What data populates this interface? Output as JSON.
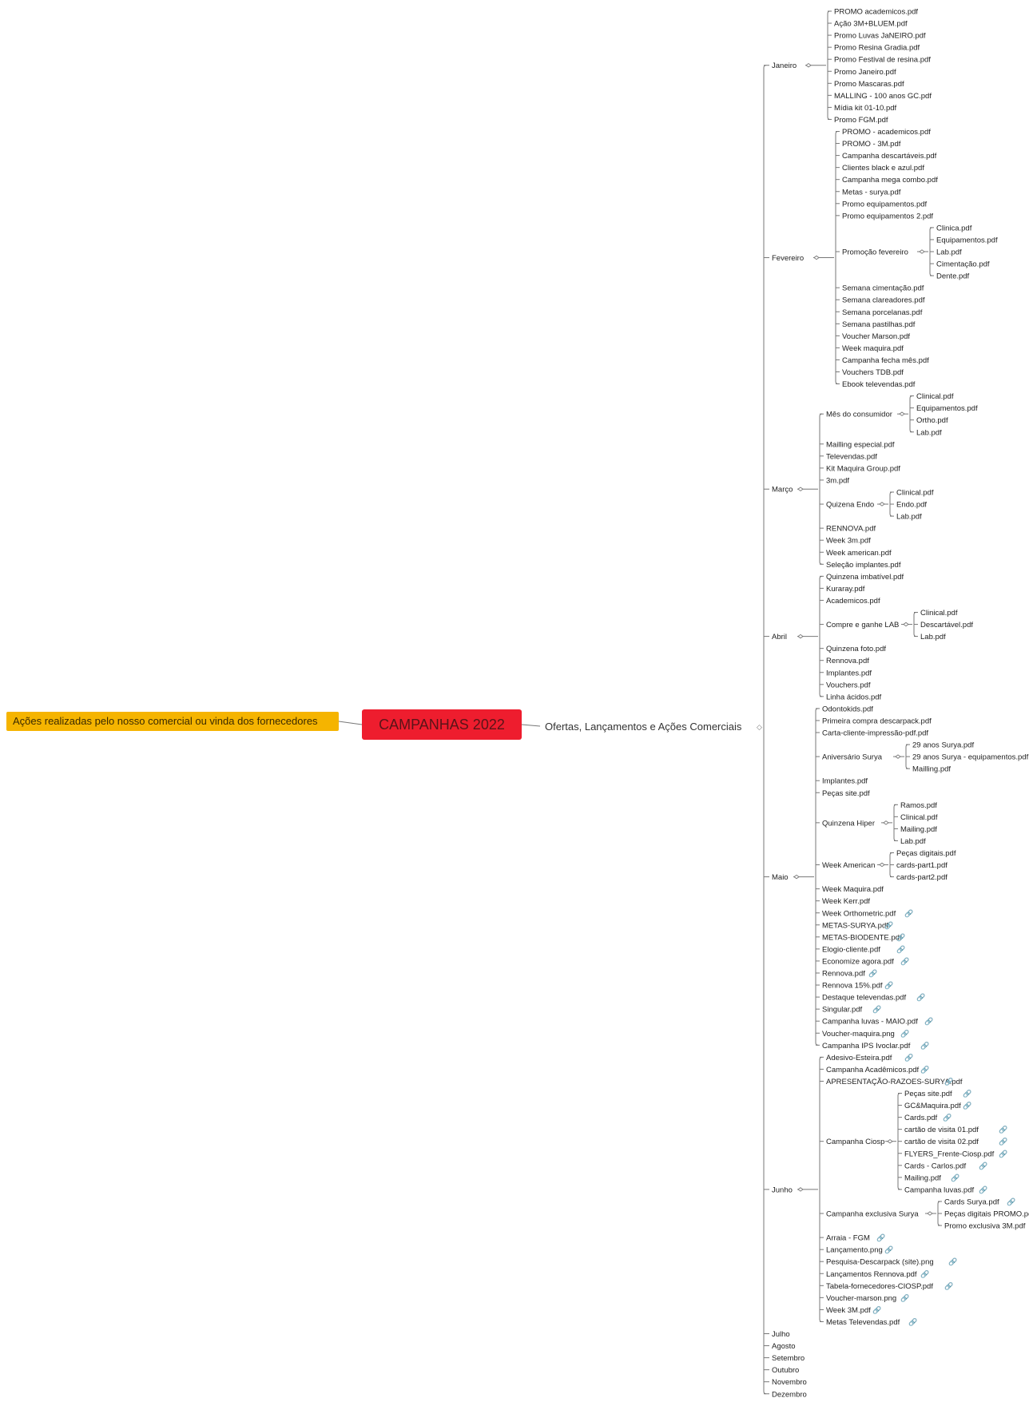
{
  "callout": {
    "text": "Ações realizadas pelo nosso comercial ou vinda dos fornecedores"
  },
  "central": {
    "title": "CAMPANHAS 2022"
  },
  "branch": {
    "label": "Ofertas, Lançamentos e Ações Comerciais"
  },
  "colors": {
    "callout": "#f5b400",
    "central": "#ee1d2e",
    "link_icon": "#4a8ad4"
  },
  "months": [
    {
      "label": "Janeiro",
      "children": [
        {
          "label": "PROMO academicos.pdf"
        },
        {
          "label": "Ação 3M+BLUEM.pdf"
        },
        {
          "label": "Promo Luvas JaNEIRO.pdf"
        },
        {
          "label": "Promo Resina Gradia.pdf"
        },
        {
          "label": "Promo Festival de resina.pdf"
        },
        {
          "label": "Promo Janeiro.pdf"
        },
        {
          "label": "Promo Mascaras.pdf"
        },
        {
          "label": "MALLING - 100 anos GC.pdf"
        },
        {
          "label": "Mídia kit 01-10.pdf"
        },
        {
          "label": "Promo FGM.pdf"
        }
      ]
    },
    {
      "label": "Fevereiro",
      "children": [
        {
          "label": "PROMO - academicos.pdf"
        },
        {
          "label": "PROMO - 3M.pdf"
        },
        {
          "label": "Campanha descartáveis.pdf"
        },
        {
          "label": "Clientes black e azul.pdf"
        },
        {
          "label": "Campanha mega combo.pdf"
        },
        {
          "label": "Metas - surya.pdf"
        },
        {
          "label": "Promo equipamentos.pdf"
        },
        {
          "label": "Promo equipamentos 2.pdf"
        },
        {
          "label": "Promoção fevereiro",
          "children": [
            {
              "label": "Clinica.pdf"
            },
            {
              "label": "Equipamentos.pdf"
            },
            {
              "label": "Lab.pdf"
            },
            {
              "label": "Cimentação.pdf"
            },
            {
              "label": "Dente.pdf"
            }
          ]
        },
        {
          "label": "Semana cimentação.pdf"
        },
        {
          "label": "Semana clareadores.pdf"
        },
        {
          "label": "Semana porcelanas.pdf"
        },
        {
          "label": "Semana pastilhas.pdf"
        },
        {
          "label": "Voucher Marson.pdf"
        },
        {
          "label": "Week maquira.pdf"
        },
        {
          "label": "Campanha fecha mês.pdf"
        },
        {
          "label": "Vouchers TDB.pdf"
        },
        {
          "label": "Ebook televendas.pdf"
        }
      ]
    },
    {
      "label": "Março",
      "children": [
        {
          "label": "Mês do consumidor",
          "children": [
            {
              "label": "Clinical.pdf"
            },
            {
              "label": "Equipamentos.pdf"
            },
            {
              "label": "Ortho.pdf"
            },
            {
              "label": "Lab.pdf"
            }
          ]
        },
        {
          "label": "Mailling especial.pdf"
        },
        {
          "label": "Televendas.pdf"
        },
        {
          "label": "Kit Maquira Group.pdf"
        },
        {
          "label": "3m.pdf"
        },
        {
          "label": "Quizena Endo",
          "children": [
            {
              "label": "Clinical.pdf"
            },
            {
              "label": "Endo.pdf"
            },
            {
              "label": "Lab.pdf"
            }
          ]
        },
        {
          "label": "RENNOVA.pdf"
        },
        {
          "label": "Week 3m.pdf"
        },
        {
          "label": "Week american.pdf"
        },
        {
          "label": "Seleção implantes.pdf"
        }
      ]
    },
    {
      "label": "Abril",
      "children": [
        {
          "label": "Quinzena imbatível.pdf"
        },
        {
          "label": "Kuraray.pdf"
        },
        {
          "label": "Academicos.pdf"
        },
        {
          "label": "Compre e ganhe LAB",
          "children": [
            {
              "label": "Clinical.pdf"
            },
            {
              "label": "Descartável.pdf"
            },
            {
              "label": "Lab.pdf"
            }
          ]
        },
        {
          "label": "Quinzena foto.pdf"
        },
        {
          "label": "Rennova.pdf"
        },
        {
          "label": "Implantes.pdf"
        },
        {
          "label": "Vouchers.pdf"
        },
        {
          "label": "Linha ácidos.pdf"
        }
      ]
    },
    {
      "label": "Maio",
      "children": [
        {
          "label": "Odontokids.pdf"
        },
        {
          "label": "Primeira compra descarpack.pdf"
        },
        {
          "label": "Carta-cliente-impressão-pdf.pdf"
        },
        {
          "label": "Aniversário Surya",
          "children": [
            {
              "label": "29 anos Surya.pdf"
            },
            {
              "label": "29 anos Surya - equipamentos.pdf"
            },
            {
              "label": "Mailling.pdf"
            }
          ]
        },
        {
          "label": "Implantes.pdf"
        },
        {
          "label": "Peças site.pdf"
        },
        {
          "label": "Quinzena Hiper",
          "children": [
            {
              "label": "Ramos.pdf"
            },
            {
              "label": "Clinical.pdf"
            },
            {
              "label": "Mailing.pdf"
            },
            {
              "label": "Lab.pdf"
            }
          ]
        },
        {
          "label": "Week American",
          "children": [
            {
              "label": "Peças digitais.pdf"
            },
            {
              "label": "cards-part1.pdf"
            },
            {
              "label": "cards-part2.pdf"
            }
          ]
        },
        {
          "label": "Week Maquira.pdf"
        },
        {
          "label": "Week Kerr.pdf"
        },
        {
          "label": "Week Orthometric.pdf",
          "link": true
        },
        {
          "label": "METAS-SURYA.pdf",
          "link": true
        },
        {
          "label": "METAS-BIODENTE.pdf",
          "link": true
        },
        {
          "label": "Elogio-cliente.pdf",
          "link": true
        },
        {
          "label": "Economize agora.pdf",
          "link": true
        },
        {
          "label": "Rennova.pdf",
          "link": true
        },
        {
          "label": "Rennova 15%.pdf",
          "link": true
        },
        {
          "label": "Destaque televendas.pdf",
          "link": true
        },
        {
          "label": "Singular.pdf",
          "link": true
        },
        {
          "label": "Campanha luvas - MAIO.pdf",
          "link": true
        },
        {
          "label": "Voucher-maquira.png",
          "link": true
        },
        {
          "label": "Campanha IPS Ivoclar.pdf",
          "link": true
        }
      ]
    },
    {
      "label": "Junho",
      "children": [
        {
          "label": "Adesivo-Esteira.pdf",
          "link": true
        },
        {
          "label": "Campanha Acadêmicos.pdf",
          "link": true
        },
        {
          "label": "APRESENTAÇÃO-RAZOES-SURYA.pdf",
          "link": true
        },
        {
          "label": "Campanha Ciosp",
          "children": [
            {
              "label": "Peças site.pdf",
              "link": true
            },
            {
              "label": "GC&Maquira.pdf",
              "link": true
            },
            {
              "label": "Cards.pdf",
              "link": true
            },
            {
              "label": "cartão de visita 01.pdf",
              "link": true
            },
            {
              "label": "cartão de visita 02.pdf",
              "link": true
            },
            {
              "label": "FLYERS_Frente-Ciosp.pdf",
              "link": true
            },
            {
              "label": "Cards - Carlos.pdf",
              "link": true
            },
            {
              "label": "Mailing.pdf",
              "link": true
            },
            {
              "label": "Campanha luvas.pdf",
              "link": true
            }
          ]
        },
        {
          "label": "Campanha exclusiva Surya",
          "children": [
            {
              "label": "Cards Surya.pdf",
              "link": true
            },
            {
              "label": "Peças digitais PROMO.pdf",
              "link": true
            },
            {
              "label": "Promo exclusiva 3M.pdf",
              "link": true
            }
          ]
        },
        {
          "label": "Arraia - FGM",
          "link": true
        },
        {
          "label": "Lançamento.png",
          "link": true
        },
        {
          "label": "Pesquisa-Descarpack (site).png",
          "link": true
        },
        {
          "label": "Lançamentos Rennova.pdf",
          "link": true
        },
        {
          "label": "Tabela-fornecedores-CIOSP.pdf",
          "link": true
        },
        {
          "label": "Voucher-marson.png",
          "link": true
        },
        {
          "label": "Week 3M.pdf",
          "link": true
        },
        {
          "label": "Metas Televendas.pdf",
          "link": true
        }
      ]
    },
    {
      "label": "Julho"
    },
    {
      "label": "Agosto"
    },
    {
      "label": "Setembro"
    },
    {
      "label": "Outubro"
    },
    {
      "label": "Novembro"
    },
    {
      "label": "Dezembro"
    }
  ]
}
